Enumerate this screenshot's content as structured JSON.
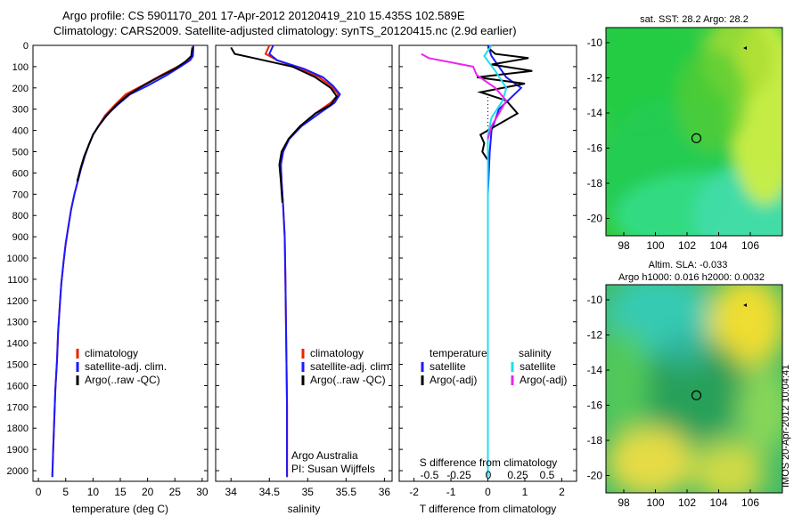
{
  "title_line1": "Argo profile: CS 5901170_201 17-Apr-2012 20120419_210 15.435S 102.589E",
  "title_line2": "Climatology: CARS2009. Satellite-adjusted climatology: synTS_20120415.nc (2.9d earlier)",
  "stamp": "IMOS 20-Apr-2012 10:04:41",
  "colors": {
    "climatology": "#ee2200",
    "satellite": "#1a1aff",
    "argo": "#000000",
    "salinity_satellite": "#22ddee",
    "salinity_argo": "#ee22ee"
  },
  "chart_data": [
    {
      "type": "line",
      "panel": "temperature",
      "xlabel": "temperature (deg C)",
      "xlim": [
        -1,
        31
      ],
      "xticks": [
        0,
        5,
        10,
        15,
        20,
        25,
        30
      ],
      "ylim": [
        0,
        2050
      ],
      "yticks": [
        0,
        100,
        200,
        300,
        400,
        500,
        600,
        700,
        800,
        900,
        1000,
        1100,
        1200,
        1300,
        1400,
        1500,
        1600,
        1700,
        1800,
        1900,
        2000
      ],
      "legend": [
        "climatology",
        "satellite-adj. clim.",
        "Argo(..raw -QC)"
      ],
      "series": [
        {
          "name": "climatology",
          "x": [
            28.3,
            28.2,
            27.6,
            25.5,
            22.5,
            19,
            16,
            14,
            12.2,
            11,
            10,
            9.2,
            8.5,
            7.8,
            7.2,
            6.6,
            6,
            5.5,
            5,
            4.6,
            4.2,
            3.9,
            3.6,
            3.4,
            3.1,
            2.9,
            2.7,
            2.55
          ],
          "y": [
            0,
            50,
            70,
            100,
            140,
            190,
            230,
            280,
            330,
            380,
            420,
            470,
            520,
            580,
            640,
            700,
            770,
            850,
            930,
            1020,
            1120,
            1230,
            1350,
            1480,
            1620,
            1760,
            1900,
            2030
          ]
        },
        {
          "name": "satellite-adj. clim.",
          "x": [
            28.4,
            28.3,
            27.8,
            26,
            23.5,
            20,
            16.8,
            14.5,
            12.4,
            11,
            10,
            9.2,
            8.5,
            7.8,
            7.2,
            6.6,
            6,
            5.5,
            5,
            4.6,
            4.2,
            3.9,
            3.6,
            3.4,
            3.1,
            2.9,
            2.7,
            2.55
          ],
          "y": [
            0,
            50,
            70,
            100,
            140,
            190,
            230,
            280,
            330,
            380,
            420,
            470,
            520,
            580,
            640,
            700,
            770,
            850,
            930,
            1020,
            1120,
            1230,
            1350,
            1480,
            1620,
            1760,
            1900,
            2030
          ]
        },
        {
          "name": "Argo(..raw -QC)",
          "x": [
            28.2,
            28,
            27,
            25,
            22,
            18.8,
            16.3,
            14.3,
            12.5,
            11,
            10,
            9.2,
            8.4,
            7.7,
            7.1
          ],
          "y": [
            10,
            50,
            75,
            110,
            150,
            195,
            235,
            280,
            330,
            380,
            420,
            470,
            520,
            580,
            640
          ]
        }
      ]
    },
    {
      "type": "line",
      "panel": "salinity",
      "xlabel": "salinity",
      "xlim": [
        33.8,
        36.1
      ],
      "xticks": [
        34,
        34.5,
        35,
        35.5,
        36
      ],
      "ylim": [
        0,
        2050
      ],
      "legend": [
        "climatology",
        "satellite-adj. clim.",
        "Argo(..raw -QC)"
      ],
      "annotation": [
        "Argo Australia",
        "PI: Susan Wijffels"
      ],
      "series": [
        {
          "name": "climatology",
          "x": [
            34.5,
            34.45,
            34.6,
            34.9,
            35.15,
            35.3,
            35.4,
            35.3,
            35.1,
            34.9,
            34.75,
            34.68,
            34.65,
            34.66,
            34.68,
            34.7,
            34.71,
            34.72,
            34.73,
            34.73
          ],
          "y": [
            0,
            40,
            70,
            110,
            150,
            190,
            230,
            270,
            320,
            380,
            440,
            500,
            560,
            640,
            760,
            900,
            1100,
            1400,
            1700,
            2030
          ]
        },
        {
          "name": "satellite-adj. clim.",
          "x": [
            34.55,
            34.5,
            34.6,
            34.95,
            35.2,
            35.33,
            35.42,
            35.35,
            35.15,
            34.92,
            34.76,
            34.68,
            34.65,
            34.66,
            34.68,
            34.7,
            34.71,
            34.72,
            34.73,
            34.73
          ],
          "y": [
            0,
            40,
            70,
            110,
            150,
            190,
            230,
            270,
            320,
            380,
            440,
            500,
            560,
            640,
            760,
            900,
            1100,
            1400,
            1700,
            2030
          ]
        },
        {
          "name": "Argo(..raw -QC)",
          "x": [
            34.0,
            34.05,
            34.3,
            34.8,
            35.1,
            35.3,
            35.38,
            35.3,
            35.1,
            34.9,
            34.75,
            34.66,
            34.63,
            34.65,
            34.67
          ],
          "y": [
            10,
            40,
            60,
            100,
            150,
            200,
            240,
            280,
            320,
            380,
            440,
            500,
            560,
            640,
            740
          ]
        }
      ]
    },
    {
      "type": "line",
      "panel": "difference",
      "xlabel": "T difference from climatology",
      "xlabel2": "S difference from climatology",
      "xlim": [
        -2.4,
        2.4
      ],
      "xticks": [
        -2,
        -1,
        0,
        1,
        2
      ],
      "xticks2": [
        "-0.5",
        "-0.25",
        "0",
        "0.25",
        "0.5"
      ],
      "ylim": [
        0,
        2050
      ],
      "legend_temperature_title": "temperature",
      "legend_salinity_title": "salinity",
      "legend": [
        "satellite",
        "Argo(-adj)",
        "satellite",
        "Argo(-adj)"
      ],
      "series": [
        {
          "name": "satellite",
          "x": [
            0,
            0.1,
            0.3,
            0.5,
            0.9,
            0.6,
            0.3,
            0.2,
            0.1,
            0.05,
            0,
            0,
            0
          ],
          "y": [
            0,
            50,
            100,
            150,
            200,
            250,
            300,
            350,
            400,
            500,
            700,
            1200,
            2030
          ]
        },
        {
          "name": "Argo(-adj)",
          "x": [
            0,
            0.2,
            1.1,
            0.1,
            1.2,
            -0.3,
            1,
            -0.2,
            0.5,
            0.8,
            -0.2,
            -0.1,
            -0.15,
            0,
            0
          ],
          "y": [
            10,
            40,
            60,
            90,
            120,
            150,
            180,
            220,
            260,
            320,
            420,
            460,
            500,
            540,
            640
          ]
        },
        {
          "name": "satellite",
          "x": [
            0.1,
            -0.1,
            0.2,
            0.5,
            0.4,
            0.1,
            0,
            0,
            0
          ],
          "y": [
            0,
            50,
            120,
            200,
            260,
            340,
            420,
            800,
            2030
          ]
        },
        {
          "name": "Argo(-adj)",
          "x": [
            -1.8,
            -1.6,
            -0.7,
            -0.4,
            -0.3,
            0.2,
            0.5,
            0.3,
            0.1,
            0
          ],
          "y": [
            40,
            60,
            90,
            100,
            140,
            200,
            260,
            320,
            380,
            440
          ]
        }
      ]
    },
    {
      "type": "heatmap",
      "panel": "sst-map",
      "title": "sat. SST: 28.2  Argo: 28.2",
      "xticks": [
        "98",
        "100",
        "102",
        "104",
        "106"
      ],
      "yticks": [
        "-10",
        "-12",
        "-14",
        "-16",
        "-18",
        "-20"
      ],
      "marker": [
        102.59,
        -15.435
      ]
    },
    {
      "type": "heatmap",
      "panel": "sla-map",
      "title_line1": "Altim. SLA: -0.033",
      "title_line2": "Argo h1000: 0.016 h2000: 0.0032",
      "xticks": [
        "98",
        "100",
        "102",
        "104",
        "106"
      ],
      "yticks": [
        "-10",
        "-12",
        "-14",
        "-16",
        "-18",
        "-20"
      ],
      "marker": [
        102.59,
        -15.435
      ]
    }
  ]
}
